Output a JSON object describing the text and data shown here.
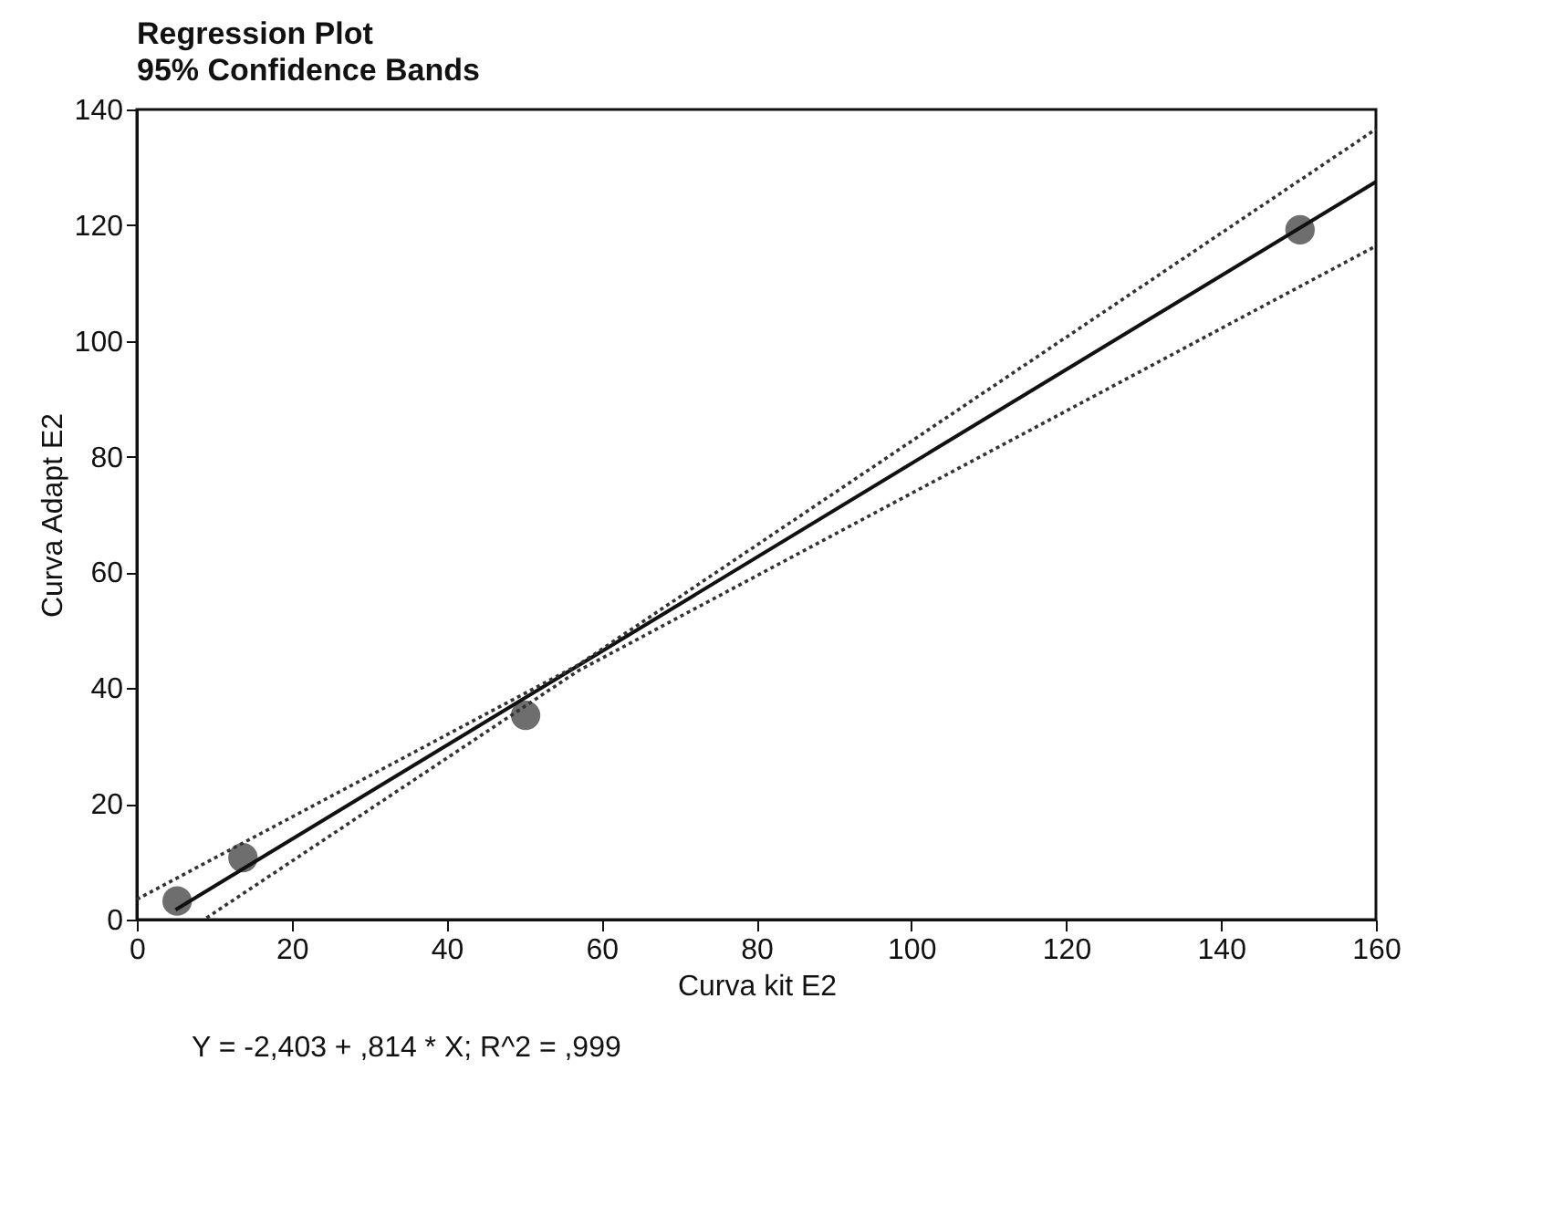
{
  "chart_data": {
    "type": "scatter",
    "title": "Regression Plot",
    "subtitle": "95% Confidence Bands",
    "xlabel": "Curva kit E2",
    "ylabel": "Curva Adapt E2",
    "annotations": [
      "Y = -2,403 + ,814 * X; R^2 = ,999"
    ],
    "xlim": [
      0,
      160
    ],
    "xticks": [
      0,
      20,
      40,
      60,
      80,
      100,
      120,
      140,
      160
    ],
    "ylim": [
      0,
      140
    ],
    "yticks": [
      0,
      20,
      40,
      60,
      80,
      100,
      120,
      140
    ],
    "grid": false,
    "series": [
      {
        "color": "#6e6e6e",
        "marker": "circle",
        "x": [
          5.2,
          13.7,
          50.2,
          150.2
        ],
        "values": [
          3.2,
          10.7,
          35.3,
          119.2
        ]
      },
      {
        "type": "line",
        "color": "#111111",
        "line_style": "solid",
        "x": [
          5,
          160
        ],
        "values": [
          1.7,
          127.5
        ]
      },
      {
        "type": "line",
        "color": "#333333",
        "line_style": "dotted",
        "x": [
          0,
          57,
          160
        ],
        "values": [
          3.5,
          44,
          136.6
        ]
      },
      {
        "type": "line",
        "color": "#333333",
        "line_style": "dotted",
        "x": [
          9,
          57,
          160
        ],
        "values": [
          0.3,
          43,
          116.4
        ]
      }
    ]
  }
}
